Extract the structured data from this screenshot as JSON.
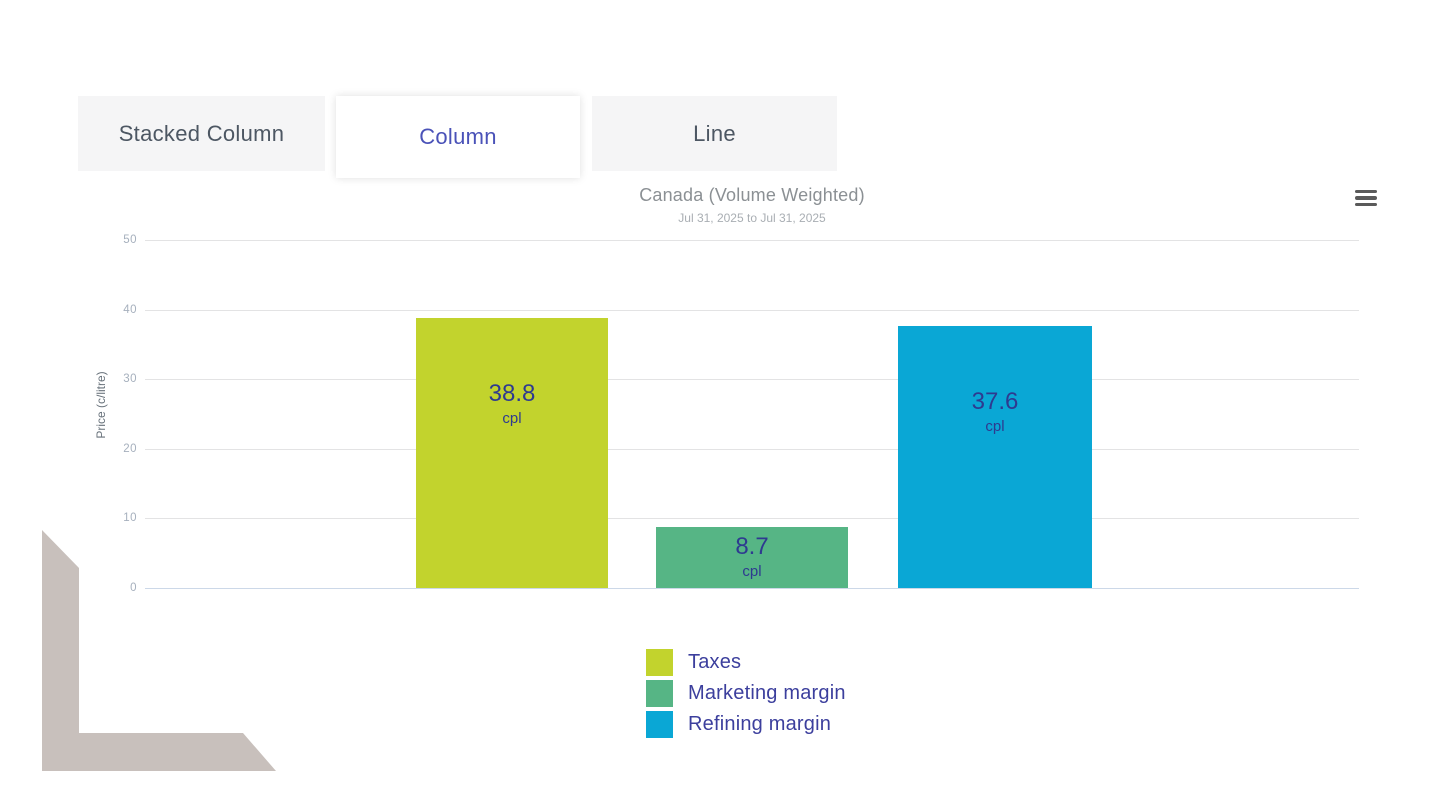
{
  "tabs": [
    {
      "label": "Stacked Column",
      "active": false
    },
    {
      "label": "Column",
      "active": true
    },
    {
      "label": "Line",
      "active": false
    }
  ],
  "header": {
    "title": "Canada (Volume Weighted)",
    "subtitle": "Jul 31, 2025 to Jul 31, 2025",
    "menu_icon": "hamburger-menu-icon"
  },
  "chart_data": {
    "type": "bar",
    "title": "Canada (Volume Weighted)",
    "subtitle": "Jul 31, 2025 to Jul 31, 2025",
    "xlabel": "",
    "ylabel": "Price (c/litre)",
    "ylim": [
      0,
      50
    ],
    "yticks": [
      0,
      10,
      20,
      30,
      40,
      50
    ],
    "grid": true,
    "legend_position": "bottom",
    "value_suffix": "cpl",
    "series": [
      {
        "name": "Taxes",
        "value": 38.8,
        "color": "#c2d32d"
      },
      {
        "name": "Marketing margin",
        "value": 8.7,
        "color": "#56b585"
      },
      {
        "name": "Refining margin",
        "value": 37.6,
        "color": "#0aa7d5"
      }
    ]
  },
  "colors": {
    "active_tab_text": "#4a52b8",
    "tab_text": "#4d5763",
    "tab_background": "#f5f5f6",
    "data_label": "#2e3a90",
    "legend_text": "#3c3f9d",
    "gridline": "#e3e3e4",
    "zero_line": "#ccd8e8",
    "corner_shape": "#c8c0bc"
  }
}
